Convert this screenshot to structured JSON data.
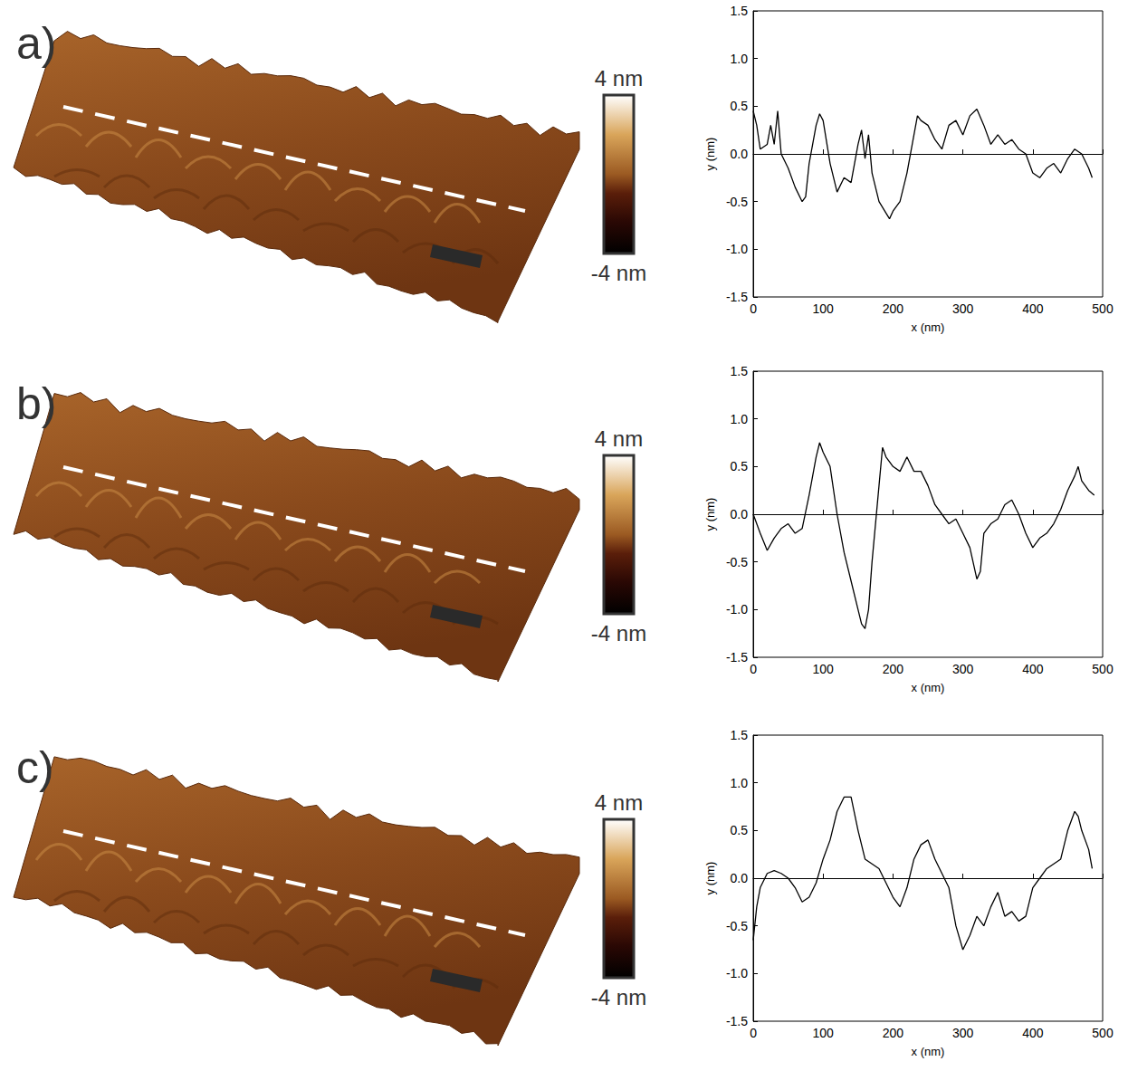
{
  "chart_data": [
    {
      "type": "line",
      "panel": "a)",
      "color": "#000000",
      "xlabel": "x (nm)",
      "ylabel": "y (nm)",
      "xlim": [
        0,
        500
      ],
      "xticks": [
        0,
        100,
        200,
        300,
        400,
        500
      ],
      "ylim": [
        -1.5,
        1.5
      ],
      "yticks": [
        -1.5,
        {
          "value": -1.0,
          "label": "-1.0"
        },
        -0.5,
        {
          "value": 0.0,
          "label": "0.0"
        },
        0.5,
        {
          "value": 1.0,
          "label": "1.0"
        },
        1.5
      ],
      "colorbar": {
        "range": [
          -4,
          4
        ],
        "ticks": [
          {
            "value": 4,
            "label": "4 nm"
          },
          {
            "value": -4,
            "label": "-4 nm"
          }
        ]
      },
      "x": [
        0,
        5,
        10,
        20,
        25,
        30,
        35,
        40,
        50,
        60,
        70,
        75,
        80,
        90,
        95,
        100,
        110,
        120,
        130,
        140,
        150,
        155,
        160,
        165,
        170,
        180,
        190,
        195,
        200,
        210,
        220,
        230,
        235,
        240,
        250,
        260,
        270,
        280,
        290,
        300,
        310,
        320,
        330,
        340,
        350,
        360,
        370,
        380,
        390,
        400,
        410,
        420,
        430,
        440,
        450,
        460,
        470,
        480,
        485
      ],
      "values": [
        0.45,
        0.3,
        0.05,
        0.1,
        0.3,
        0.1,
        0.45,
        0.0,
        -0.15,
        -0.35,
        -0.5,
        -0.45,
        -0.1,
        0.3,
        0.42,
        0.35,
        -0.1,
        -0.4,
        -0.25,
        -0.3,
        0.1,
        0.25,
        -0.05,
        0.2,
        -0.2,
        -0.5,
        -0.62,
        -0.68,
        -0.6,
        -0.5,
        -0.2,
        0.2,
        0.4,
        0.35,
        0.3,
        0.15,
        0.05,
        0.3,
        0.35,
        0.2,
        0.4,
        0.47,
        0.3,
        0.1,
        0.2,
        0.1,
        0.15,
        0.05,
        0.0,
        -0.2,
        -0.25,
        -0.15,
        -0.1,
        -0.2,
        -0.05,
        0.05,
        0.0,
        -0.15,
        -0.25
      ]
    },
    {
      "type": "line",
      "panel": "b)",
      "color": "#000000",
      "xlabel": "x (nm)",
      "ylabel": "y (nm)",
      "xlim": [
        0,
        500
      ],
      "xticks": [
        0,
        100,
        200,
        300,
        400,
        500
      ],
      "ylim": [
        -1.5,
        1.5
      ],
      "yticks": [
        -1.5,
        {
          "value": -1.0,
          "label": "-1.0"
        },
        -0.5,
        {
          "value": 0.0,
          "label": "0.0"
        },
        0.5,
        {
          "value": 1.0,
          "label": "1.0"
        },
        1.5
      ],
      "colorbar": {
        "range": [
          -4,
          4
        ],
        "ticks": [
          {
            "value": 4,
            "label": "4 nm"
          },
          {
            "value": -4,
            "label": "-4 nm"
          }
        ]
      },
      "x": [
        0,
        10,
        20,
        30,
        40,
        50,
        60,
        70,
        80,
        90,
        95,
        100,
        110,
        120,
        130,
        140,
        150,
        155,
        160,
        165,
        170,
        180,
        185,
        190,
        200,
        210,
        220,
        230,
        240,
        250,
        260,
        270,
        280,
        290,
        300,
        310,
        320,
        325,
        330,
        340,
        350,
        360,
        370,
        380,
        390,
        400,
        410,
        420,
        430,
        440,
        450,
        460,
        465,
        470,
        480,
        488
      ],
      "values": [
        0.0,
        -0.2,
        -0.38,
        -0.25,
        -0.15,
        -0.1,
        -0.2,
        -0.15,
        0.2,
        0.6,
        0.75,
        0.65,
        0.5,
        0.0,
        -0.4,
        -0.7,
        -1.0,
        -1.15,
        -1.2,
        -1.0,
        -0.5,
        0.3,
        0.7,
        0.6,
        0.5,
        0.45,
        0.6,
        0.45,
        0.45,
        0.3,
        0.1,
        0.0,
        -0.1,
        -0.05,
        -0.2,
        -0.35,
        -0.68,
        -0.6,
        -0.2,
        -0.1,
        -0.05,
        0.1,
        0.15,
        0.0,
        -0.2,
        -0.35,
        -0.25,
        -0.2,
        -0.1,
        0.05,
        0.25,
        0.4,
        0.5,
        0.35,
        0.25,
        0.2
      ]
    },
    {
      "type": "line",
      "panel": "c)",
      "color": "#000000",
      "xlabel": "x (nm)",
      "ylabel": "y (nm)",
      "xlim": [
        0,
        500
      ],
      "xticks": [
        0,
        100,
        200,
        300,
        400,
        500
      ],
      "ylim": [
        -1.5,
        1.5
      ],
      "yticks": [
        -1.5,
        {
          "value": -1.0,
          "label": "-1.0"
        },
        -0.5,
        {
          "value": 0.0,
          "label": "0.0"
        },
        0.5,
        {
          "value": 1.0,
          "label": "1.0"
        },
        1.5
      ],
      "colorbar": {
        "range": [
          -4,
          4
        ],
        "ticks": [
          {
            "value": 4,
            "label": "4 nm"
          },
          {
            "value": -4,
            "label": "-4 nm"
          }
        ]
      },
      "x": [
        0,
        5,
        10,
        20,
        30,
        40,
        50,
        60,
        70,
        80,
        90,
        100,
        110,
        120,
        130,
        140,
        150,
        160,
        170,
        180,
        190,
        200,
        210,
        220,
        230,
        240,
        250,
        260,
        270,
        280,
        290,
        300,
        310,
        320,
        330,
        340,
        350,
        360,
        370,
        380,
        390,
        400,
        410,
        420,
        430,
        440,
        450,
        460,
        465,
        470,
        480,
        485
      ],
      "values": [
        -0.65,
        -0.3,
        -0.1,
        0.05,
        0.08,
        0.05,
        0.0,
        -0.1,
        -0.25,
        -0.2,
        -0.05,
        0.2,
        0.4,
        0.7,
        0.85,
        0.85,
        0.5,
        0.2,
        0.15,
        0.1,
        -0.05,
        -0.2,
        -0.3,
        -0.1,
        0.2,
        0.35,
        0.4,
        0.2,
        0.05,
        -0.1,
        -0.5,
        -0.75,
        -0.6,
        -0.4,
        -0.5,
        -0.3,
        -0.15,
        -0.4,
        -0.35,
        -0.45,
        -0.4,
        -0.1,
        0.0,
        0.1,
        0.15,
        0.2,
        0.5,
        0.7,
        0.65,
        0.5,
        0.3,
        0.1
      ]
    }
  ]
}
